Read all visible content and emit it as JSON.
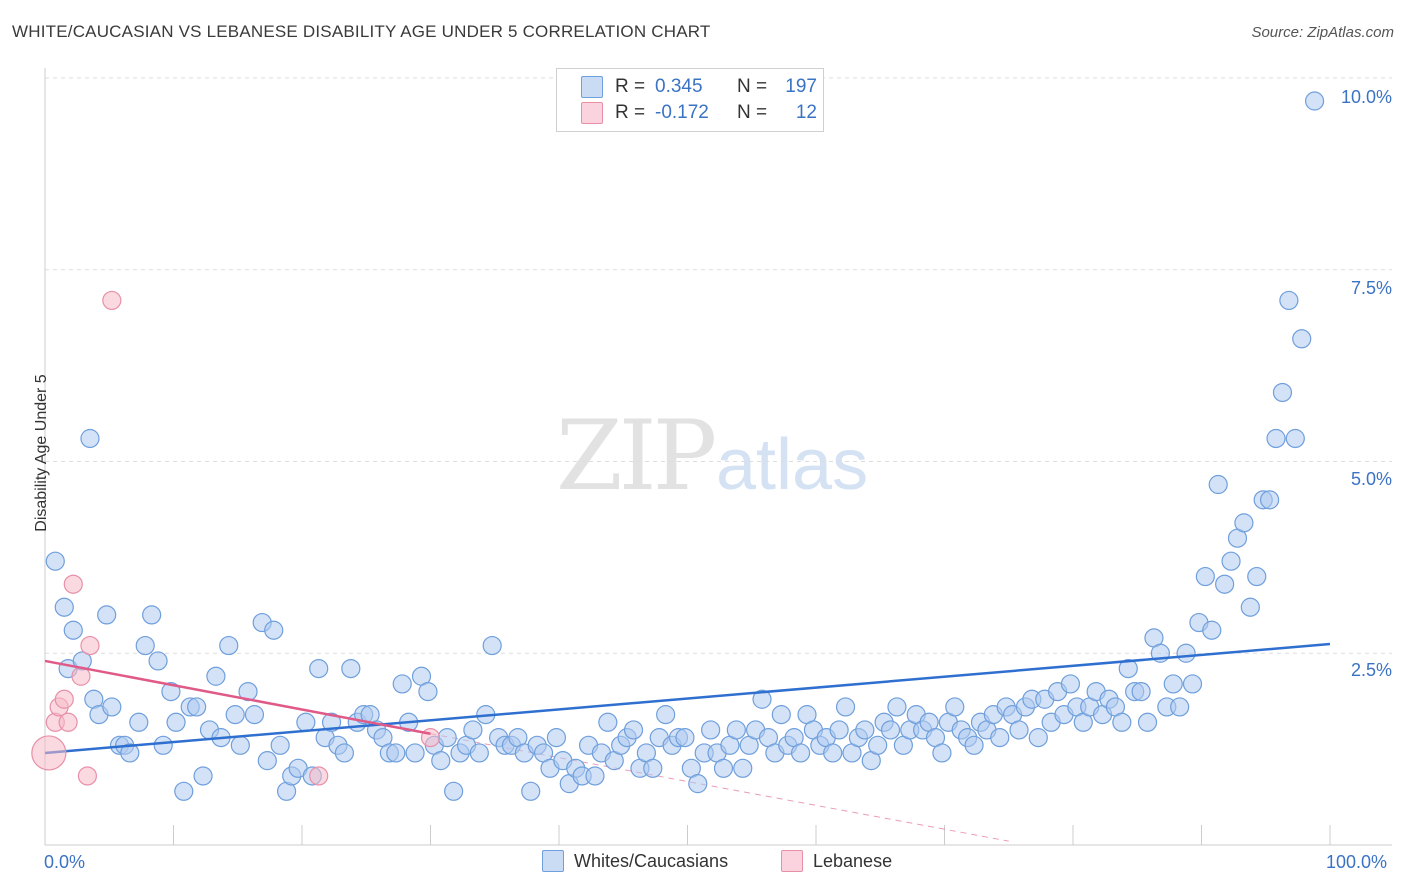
{
  "title": "WHITE/CAUCASIAN VS LEBANESE DISABILITY AGE UNDER 5 CORRELATION CHART",
  "source": "Source: ZipAtlas.com",
  "watermark": {
    "zip": "ZIP",
    "atlas": "atlas"
  },
  "legend": {
    "r_label": "R =",
    "n_label": "N =",
    "rows": [
      {
        "r": "0.345",
        "n": "197",
        "color": "#aecbf0"
      },
      {
        "r": "-0.172",
        "n": "12",
        "color": "#f6b9c9"
      }
    ]
  },
  "bottom_legend": [
    {
      "label": "Whites/Caucasians",
      "color": "#aecbf0"
    },
    {
      "label": "Lebanese",
      "color": "#f6b9c9"
    }
  ],
  "chart_data": {
    "type": "scatter",
    "title": "WHITE/CAUCASIAN VS LEBANESE DISABILITY AGE UNDER 5 CORRELATION CHART",
    "xlabel": "",
    "ylabel": "Disability Age Under 5",
    "xlim": [
      0,
      100
    ],
    "ylim": [
      0,
      10.5
    ],
    "x_tick_labels": [
      "0.0%",
      "100.0%"
    ],
    "y_tick_labels": [
      "2.5%",
      "5.0%",
      "7.5%",
      "10.0%"
    ],
    "y_ticks": [
      2.5,
      5.0,
      7.5,
      10.0
    ],
    "grid": true,
    "legend_position": "top-center",
    "series": [
      {
        "name": "Whites/Caucasians",
        "color": "#aecbf0",
        "stroke": "#6f9fdc",
        "trend": {
          "x0": 0,
          "y0": 1.2,
          "x1": 100,
          "y1": 2.62,
          "color": "#2f6fcf"
        },
        "points": [
          [
            0.8,
            3.7
          ],
          [
            1.5,
            3.1
          ],
          [
            1.8,
            2.3
          ],
          [
            2.2,
            2.8
          ],
          [
            2.9,
            2.4
          ],
          [
            3.5,
            5.3
          ],
          [
            3.8,
            1.9
          ],
          [
            4.2,
            1.7
          ],
          [
            4.8,
            3.0
          ],
          [
            5.2,
            1.8
          ],
          [
            5.8,
            1.3
          ],
          [
            6.2,
            1.3
          ],
          [
            6.6,
            1.2
          ],
          [
            7.3,
            1.6
          ],
          [
            7.8,
            2.6
          ],
          [
            8.3,
            3.0
          ],
          [
            8.8,
            2.4
          ],
          [
            9.2,
            1.3
          ],
          [
            9.8,
            2.0
          ],
          [
            10.2,
            1.6
          ],
          [
            10.8,
            0.7
          ],
          [
            11.3,
            1.8
          ],
          [
            11.8,
            1.8
          ],
          [
            12.3,
            0.9
          ],
          [
            12.8,
            1.5
          ],
          [
            13.3,
            2.2
          ],
          [
            13.7,
            1.4
          ],
          [
            14.3,
            2.6
          ],
          [
            14.8,
            1.7
          ],
          [
            15.2,
            1.3
          ],
          [
            15.8,
            2.0
          ],
          [
            16.3,
            1.7
          ],
          [
            16.9,
            2.9
          ],
          [
            17.3,
            1.1
          ],
          [
            17.8,
            2.8
          ],
          [
            18.3,
            1.3
          ],
          [
            18.8,
            0.7
          ],
          [
            19.2,
            0.9
          ],
          [
            19.7,
            1.0
          ],
          [
            20.3,
            1.6
          ],
          [
            20.8,
            0.9
          ],
          [
            21.3,
            2.3
          ],
          [
            21.8,
            1.4
          ],
          [
            22.3,
            1.6
          ],
          [
            22.8,
            1.3
          ],
          [
            23.3,
            1.2
          ],
          [
            23.8,
            2.3
          ],
          [
            24.3,
            1.6
          ],
          [
            24.8,
            1.7
          ],
          [
            25.3,
            1.7
          ],
          [
            25.8,
            1.5
          ],
          [
            26.3,
            1.4
          ],
          [
            26.8,
            1.2
          ],
          [
            27.3,
            1.2
          ],
          [
            27.8,
            2.1
          ],
          [
            28.3,
            1.6
          ],
          [
            28.8,
            1.2
          ],
          [
            29.3,
            2.2
          ],
          [
            29.8,
            2.0
          ],
          [
            30.3,
            1.3
          ],
          [
            30.8,
            1.1
          ],
          [
            31.3,
            1.4
          ],
          [
            31.8,
            0.7
          ],
          [
            32.3,
            1.2
          ],
          [
            32.8,
            1.3
          ],
          [
            33.3,
            1.5
          ],
          [
            33.8,
            1.2
          ],
          [
            34.3,
            1.7
          ],
          [
            34.8,
            2.6
          ],
          [
            35.3,
            1.4
          ],
          [
            35.8,
            1.3
          ],
          [
            36.3,
            1.3
          ],
          [
            36.8,
            1.4
          ],
          [
            37.3,
            1.2
          ],
          [
            37.8,
            0.7
          ],
          [
            38.3,
            1.3
          ],
          [
            38.8,
            1.2
          ],
          [
            39.3,
            1.0
          ],
          [
            39.8,
            1.4
          ],
          [
            40.3,
            1.1
          ],
          [
            40.8,
            0.8
          ],
          [
            41.3,
            1.0
          ],
          [
            41.8,
            0.9
          ],
          [
            42.3,
            1.3
          ],
          [
            42.8,
            0.9
          ],
          [
            43.3,
            1.2
          ],
          [
            43.8,
            1.6
          ],
          [
            44.3,
            1.1
          ],
          [
            44.8,
            1.3
          ],
          [
            45.3,
            1.4
          ],
          [
            45.8,
            1.5
          ],
          [
            46.3,
            1.0
          ],
          [
            46.8,
            1.2
          ],
          [
            47.3,
            1.0
          ],
          [
            47.8,
            1.4
          ],
          [
            48.3,
            1.7
          ],
          [
            48.8,
            1.3
          ],
          [
            49.3,
            1.4
          ],
          [
            49.8,
            1.4
          ],
          [
            50.3,
            1.0
          ],
          [
            50.8,
            0.8
          ],
          [
            51.3,
            1.2
          ],
          [
            51.8,
            1.5
          ],
          [
            52.3,
            1.2
          ],
          [
            52.8,
            1.0
          ],
          [
            53.3,
            1.3
          ],
          [
            53.8,
            1.5
          ],
          [
            54.3,
            1.0
          ],
          [
            54.8,
            1.3
          ],
          [
            55.3,
            1.5
          ],
          [
            55.8,
            1.9
          ],
          [
            56.3,
            1.4
          ],
          [
            56.8,
            1.2
          ],
          [
            57.3,
            1.7
          ],
          [
            57.8,
            1.3
          ],
          [
            58.3,
            1.4
          ],
          [
            58.8,
            1.2
          ],
          [
            59.3,
            1.7
          ],
          [
            59.8,
            1.5
          ],
          [
            60.3,
            1.3
          ],
          [
            60.8,
            1.4
          ],
          [
            61.3,
            1.2
          ],
          [
            61.8,
            1.5
          ],
          [
            62.3,
            1.8
          ],
          [
            62.8,
            1.2
          ],
          [
            63.3,
            1.4
          ],
          [
            63.8,
            1.5
          ],
          [
            64.3,
            1.1
          ],
          [
            64.8,
            1.3
          ],
          [
            65.3,
            1.6
          ],
          [
            65.8,
            1.5
          ],
          [
            66.3,
            1.8
          ],
          [
            66.8,
            1.3
          ],
          [
            67.3,
            1.5
          ],
          [
            67.8,
            1.7
          ],
          [
            68.3,
            1.5
          ],
          [
            68.8,
            1.6
          ],
          [
            69.3,
            1.4
          ],
          [
            69.8,
            1.2
          ],
          [
            70.3,
            1.6
          ],
          [
            70.8,
            1.8
          ],
          [
            71.3,
            1.5
          ],
          [
            71.8,
            1.4
          ],
          [
            72.3,
            1.3
          ],
          [
            72.8,
            1.6
          ],
          [
            73.3,
            1.5
          ],
          [
            73.8,
            1.7
          ],
          [
            74.3,
            1.4
          ],
          [
            74.8,
            1.8
          ],
          [
            75.3,
            1.7
          ],
          [
            75.8,
            1.5
          ],
          [
            76.3,
            1.8
          ],
          [
            76.8,
            1.9
          ],
          [
            77.3,
            1.4
          ],
          [
            77.8,
            1.9
          ],
          [
            78.3,
            1.6
          ],
          [
            78.8,
            2.0
          ],
          [
            79.3,
            1.7
          ],
          [
            79.8,
            2.1
          ],
          [
            80.3,
            1.8
          ],
          [
            80.8,
            1.6
          ],
          [
            81.3,
            1.8
          ],
          [
            81.8,
            2.0
          ],
          [
            82.3,
            1.7
          ],
          [
            82.8,
            1.9
          ],
          [
            83.3,
            1.8
          ],
          [
            83.8,
            1.6
          ],
          [
            84.3,
            2.3
          ],
          [
            84.8,
            2.0
          ],
          [
            85.3,
            2.0
          ],
          [
            85.8,
            1.6
          ],
          [
            86.3,
            2.7
          ],
          [
            86.8,
            2.5
          ],
          [
            87.3,
            1.8
          ],
          [
            87.8,
            2.1
          ],
          [
            88.3,
            1.8
          ],
          [
            88.8,
            2.5
          ],
          [
            89.3,
            2.1
          ],
          [
            89.8,
            2.9
          ],
          [
            90.3,
            3.5
          ],
          [
            90.8,
            2.8
          ],
          [
            91.3,
            4.7
          ],
          [
            91.8,
            3.4
          ],
          [
            92.3,
            3.7
          ],
          [
            92.8,
            4.0
          ],
          [
            93.3,
            4.2
          ],
          [
            93.8,
            3.1
          ],
          [
            94.3,
            3.5
          ],
          [
            94.8,
            4.5
          ],
          [
            95.3,
            4.5
          ],
          [
            95.8,
            5.3
          ],
          [
            96.3,
            5.9
          ],
          [
            96.8,
            7.1
          ],
          [
            97.3,
            5.3
          ],
          [
            97.8,
            6.6
          ],
          [
            98.8,
            9.7
          ]
        ]
      },
      {
        "name": "Lebanese",
        "color": "#f6b9c9",
        "stroke": "#e890a8",
        "trend": {
          "x0": 0,
          "y0": 2.4,
          "x1": 30,
          "y1": 1.45,
          "color": "#e05a88",
          "dash_to": [
            75,
            0.05
          ]
        },
        "points": [
          [
            0.3,
            1.2
          ],
          [
            0.8,
            1.6
          ],
          [
            1.1,
            1.8
          ],
          [
            1.5,
            1.9
          ],
          [
            1.8,
            1.6
          ],
          [
            2.2,
            3.4
          ],
          [
            2.8,
            2.2
          ],
          [
            3.3,
            0.9
          ],
          [
            3.5,
            2.6
          ],
          [
            5.2,
            7.1
          ],
          [
            21.3,
            0.9
          ],
          [
            30.0,
            1.4
          ]
        ]
      }
    ]
  }
}
